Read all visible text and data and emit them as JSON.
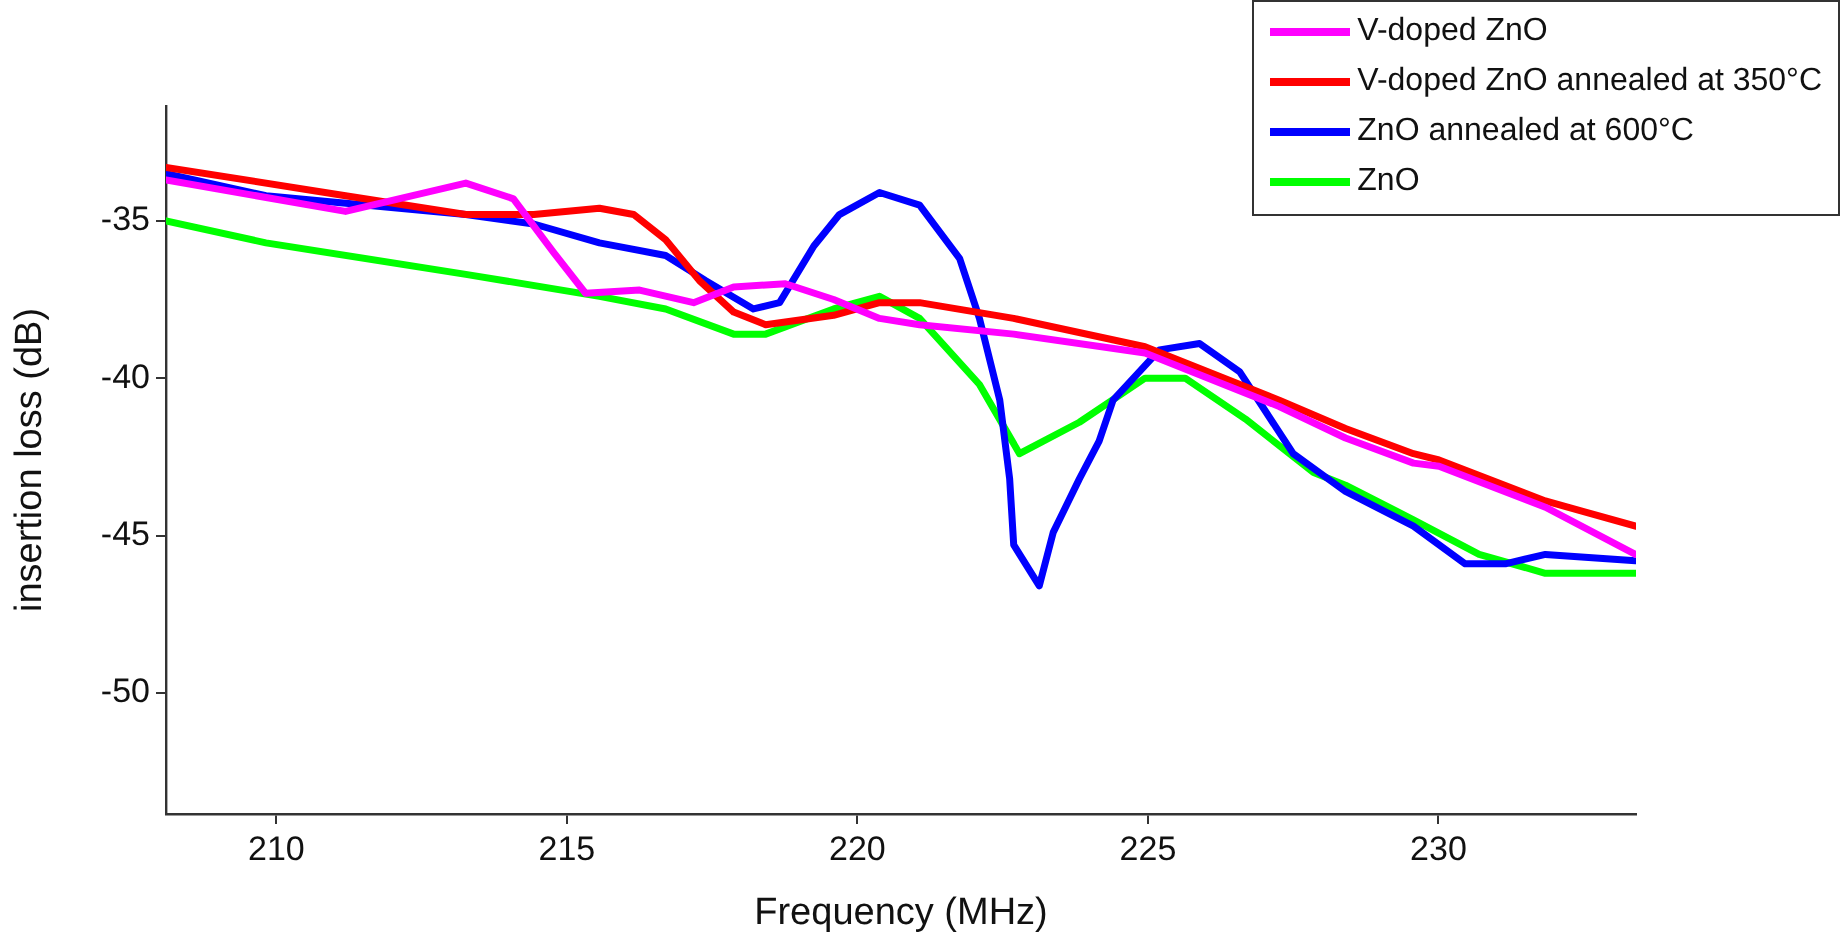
{
  "chart_data": {
    "type": "line",
    "xlabel": "Frequency (MHz)",
    "ylabel": "insertion loss (dB)",
    "xlim": [
      208.1,
      233.4
    ],
    "xticks": [
      210,
      215,
      220,
      225,
      230
    ],
    "ylim": [
      -53.85,
      -31.35
    ],
    "yticks": [
      -35,
      -40,
      -45,
      -50
    ],
    "legend": "top right",
    "marker": "none",
    "line_style": "solid",
    "series": [
      {
        "name": "V-doped ZnO",
        "color": "#ff00ff",
        "x": [
          208.1,
          211.19,
          213.26,
          214.08,
          214.77,
          215.32,
          216.25,
          217.18,
          217.87,
          218.76,
          219.59,
          220.38,
          221.07,
          222.69,
          224.95,
          227.26,
          228.4,
          229.57,
          230.01,
          231.84,
          233.39
        ],
        "values": [
          -33.7,
          -34.7,
          -33.8,
          -34.3,
          -36.0,
          -37.3,
          -37.2,
          -37.6,
          -37.1,
          -37.0,
          -37.5,
          -38.1,
          -38.3,
          -38.6,
          -39.2,
          -40.9,
          -41.9,
          -42.7,
          -42.8,
          -44.1,
          -45.6
        ]
      },
      {
        "name": "V-doped ZnO annealed at 350°C",
        "color": "#ff0000",
        "x": [
          208.1,
          211.19,
          213.26,
          214.43,
          215.56,
          216.15,
          216.7,
          217.28,
          217.87,
          218.42,
          219.59,
          220.38,
          221.07,
          222.69,
          224.95,
          227.26,
          228.4,
          229.57,
          230.01,
          231.84,
          233.39
        ],
        "values": [
          -33.3,
          -34.2,
          -34.8,
          -34.8,
          -34.6,
          -34.8,
          -35.6,
          -36.9,
          -37.9,
          -38.3,
          -38.0,
          -37.6,
          -37.6,
          -38.1,
          -39.0,
          -40.7,
          -41.6,
          -42.4,
          -42.6,
          -43.9,
          -44.7
        ]
      },
      {
        "name": "ZnO annealed at 600°C",
        "color": "#0000ff",
        "x": [
          208.1,
          209.82,
          213.26,
          214.43,
          215.56,
          216.7,
          217.39,
          218.21,
          218.66,
          219.25,
          219.69,
          220.38,
          221.07,
          221.76,
          222.1,
          222.45,
          222.62,
          222.69,
          223.13,
          223.37,
          223.82,
          224.16,
          224.4,
          225.2,
          225.89,
          226.58,
          227.5,
          228.4,
          229.57,
          230.46,
          231.15,
          231.84,
          233.39
        ],
        "values": [
          -33.5,
          -34.2,
          -34.8,
          -35.1,
          -35.7,
          -36.1,
          -36.9,
          -37.8,
          -37.6,
          -35.8,
          -34.8,
          -34.1,
          -34.5,
          -36.2,
          -38.1,
          -40.7,
          -43.2,
          -45.3,
          -46.6,
          -44.9,
          -43.2,
          -42.0,
          -40.7,
          -39.1,
          -38.9,
          -39.8,
          -42.4,
          -43.6,
          -44.7,
          -45.9,
          -45.9,
          -45.6,
          -45.8
        ]
      },
      {
        "name": "ZnO",
        "color": "#00ff00",
        "x": [
          208.1,
          209.82,
          213.26,
          215.56,
          216.7,
          217.87,
          218.42,
          219.59,
          220.38,
          221.07,
          222.1,
          222.79,
          223.82,
          224.95,
          225.64,
          226.68,
          227.85,
          228.4,
          229.57,
          230.7,
          231.84,
          233.39
        ],
        "values": [
          -35.0,
          -35.7,
          -36.7,
          -37.4,
          -37.8,
          -38.6,
          -38.6,
          -37.8,
          -37.4,
          -38.1,
          -40.2,
          -42.4,
          -41.4,
          -40.0,
          -40.0,
          -41.3,
          -43.0,
          -43.4,
          -44.5,
          -45.6,
          -46.2,
          -46.2
        ]
      }
    ]
  }
}
